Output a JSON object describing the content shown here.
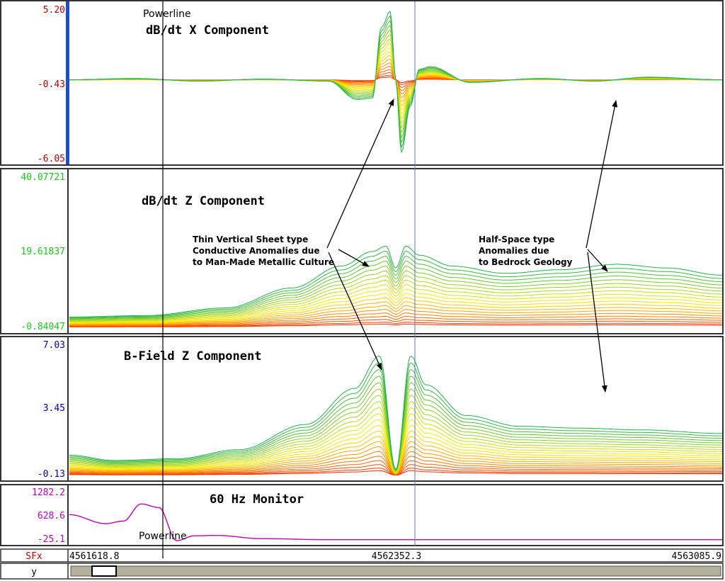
{
  "colors": {
    "x_panel_labels": "#c00000",
    "z_panel_labels": "#19c819",
    "b_panel_labels": "#0000c0",
    "hz_panel_labels": "#c000c0",
    "sfx_label": "#c00000",
    "gradient_low": "#ff2a00",
    "gradient_mid": "#ffee00",
    "gradient_high": "#22b24c",
    "monitor_line": "#c000c0",
    "blue_bar": "#1f4fc8",
    "track": "#b5b09a"
  },
  "panels": {
    "x": {
      "title": "dB/dt X Component",
      "ticks": [
        "5.20",
        "-0.43",
        "-6.05"
      ]
    },
    "z": {
      "title": "dB/dt Z Component",
      "ticks": [
        "40.07721",
        "19.61837",
        "-0.84047"
      ]
    },
    "b": {
      "title": "B-Field Z Component",
      "ticks": [
        "7.03",
        "3.45",
        "-0.13"
      ]
    },
    "hz": {
      "title": "60 Hz Monitor",
      "ticks": [
        "1282.2",
        "628.6",
        "-25.1"
      ]
    }
  },
  "annotations": {
    "powerline_top": "Powerline",
    "powerline_bottom": "Powerline",
    "thin_sheet": [
      "Thin Vertical Sheet type",
      "Conductive Anomalies due",
      "to Man-Made Metallic Culture"
    ],
    "half_space": [
      "Half-Space type",
      "Anomalies due",
      "to Bedrock Geology"
    ]
  },
  "xaxis": {
    "label": "SFx",
    "ticks": [
      "4561618.8",
      "4562352.3",
      "4563085.9"
    ],
    "y_label": "y"
  },
  "chart_data": [
    {
      "type": "line",
      "title": "dB/dt X Component",
      "x": [
        4561618.8,
        4561763,
        4561910,
        4562056,
        4562201,
        4562266,
        4562300,
        4562320,
        4562340,
        4562352.3,
        4562365,
        4562385,
        4562405,
        4562430,
        4562520,
        4562680,
        4562800,
        4562920,
        4563085.9
      ],
      "series": [
        {
          "values": [
            0.0,
            0.1,
            -0.1,
            0.05,
            -0.1,
            -1.5,
            -1.4,
            4.0,
            5.2,
            0.0,
            -5.5,
            -2.0,
            0.8,
            1.0,
            -0.2,
            0.1,
            -0.1,
            0.2,
            0.0
          ]
        }
      ],
      "ylim": [
        -6.05,
        5.2
      ]
    },
    {
      "type": "line",
      "title": "dB/dt Z Component",
      "x": [
        4561618.8,
        4561790,
        4561970,
        4562120,
        4562230,
        4562300,
        4562330,
        4562352.3,
        4562375,
        4562405,
        4562480,
        4562600,
        4562720,
        4562850,
        4562960,
        4563085.9
      ],
      "series": [
        {
          "values": [
            2.0,
            2.4,
            4.5,
            10.0,
            16.0,
            20.0,
            21.5,
            15.5,
            21.5,
            19.0,
            16.0,
            14.0,
            15.0,
            16.5,
            15.5,
            13.5
          ]
        }
      ],
      "ylim": [
        -0.84047,
        40.07721
      ]
    },
    {
      "type": "line",
      "title": "B-Field Z Component",
      "x": [
        4561618.8,
        4561720,
        4561860,
        4562000,
        4562150,
        4562260,
        4562316,
        4562352.3,
        4562386,
        4562420,
        4562510,
        4562630,
        4562760,
        4562900,
        4563085.9
      ],
      "series": [
        {
          "values": [
            1.0,
            0.7,
            0.8,
            1.3,
            2.7,
            4.7,
            6.5,
            0.2,
            6.5,
            4.9,
            3.2,
            2.6,
            2.5,
            2.4,
            2.2
          ]
        }
      ],
      "ylim": [
        -0.13,
        7.03
      ]
    },
    {
      "type": "line",
      "title": "60 Hz Monitor",
      "x": [
        4561618.8,
        4561700,
        4561740,
        4561780,
        4561820,
        4561860,
        4561900,
        4561950,
        4562050,
        4562200,
        4562352.3,
        4562600,
        4562900,
        4563085.9
      ],
      "series": [
        {
          "values": [
            700,
            450,
            520,
            1000,
            900,
            -25,
            110,
            120,
            30,
            0,
            0,
            0,
            0,
            0
          ]
        }
      ],
      "ylim": [
        -25.1,
        1282.2
      ]
    }
  ]
}
